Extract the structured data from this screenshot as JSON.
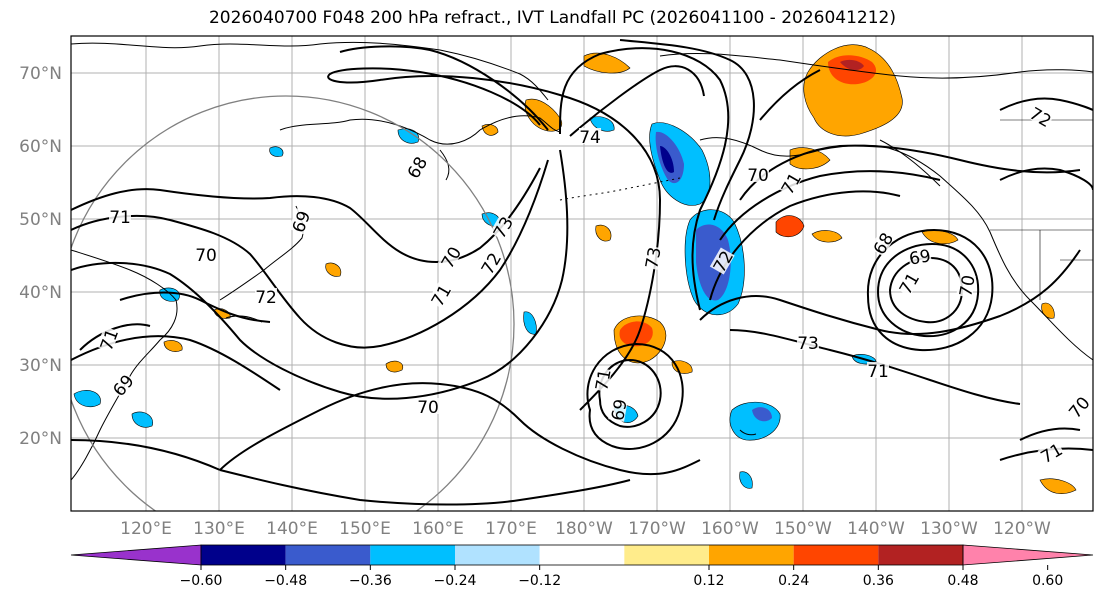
{
  "title": "2026040700 F048 200 hPa refract., IVT Landfall PC (2026041100 - 2026041212)",
  "map": {
    "lat_labels": [
      "70°N",
      "60°N",
      "50°N",
      "40°N",
      "30°N",
      "20°N"
    ],
    "lon_labels": [
      "120°E",
      "130°E",
      "140°E",
      "150°E",
      "160°E",
      "170°E",
      "180°W",
      "170°W",
      "160°W",
      "150°W",
      "140°W",
      "130°W",
      "120°W"
    ],
    "contour_labels": [
      "71",
      "68",
      "69",
      "70",
      "71",
      "72",
      "73",
      "74",
      "73",
      "70",
      "72",
      "71",
      "69",
      "70",
      "71",
      "72",
      "73",
      "71",
      "70",
      "71",
      "69",
      "70",
      "71",
      "72"
    ],
    "colors": {
      "neg_060": "#9932CC",
      "neg_048": "#00008B",
      "neg_036": "#3A5BCD",
      "neg_024": "#00BFFF",
      "neg_012": "#B0E2FF",
      "neutral": "#FFFFFF",
      "pos_012": "#FFEC8B",
      "pos_024": "#FFA500",
      "pos_036": "#FF4500",
      "pos_048": "#B22222",
      "pos_060": "#FF82AB"
    }
  },
  "colorbar": {
    "ticks": [
      "−0.60",
      "−0.48",
      "−0.36",
      "−0.24",
      "−0.12",
      "0.12",
      "0.24",
      "0.36",
      "0.48",
      "0.60"
    ]
  }
}
